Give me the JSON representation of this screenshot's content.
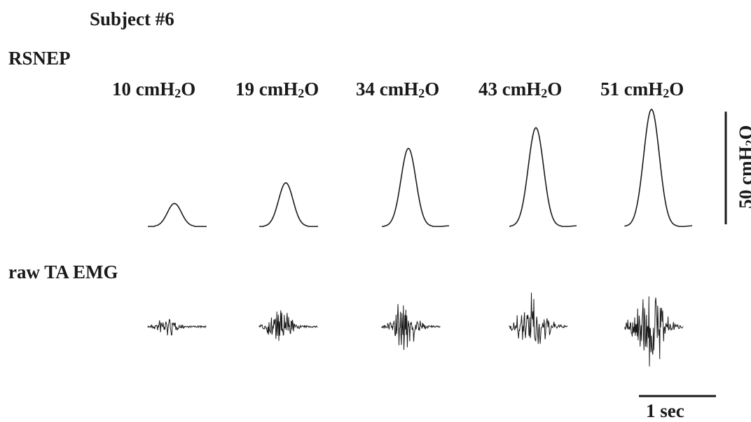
{
  "figure": {
    "subject_title": "Subject #6",
    "top_panel_label": "RSNEP",
    "bottom_panel_label": "raw TA EMG",
    "trials": [
      {
        "pressure_prefix": "10 cmH",
        "pressure_sub": "2",
        "pressure_suffix": "O",
        "peak_cmH2O": 10,
        "emg_level": 0.25
      },
      {
        "pressure_prefix": "19 cmH",
        "pressure_sub": "2",
        "pressure_suffix": "O",
        "peak_cmH2O": 19,
        "emg_level": 0.45
      },
      {
        "pressure_prefix": "34 cmH",
        "pressure_sub": "2",
        "pressure_suffix": "O",
        "peak_cmH2O": 34,
        "emg_level": 0.6
      },
      {
        "pressure_prefix": "43 cmH",
        "pressure_sub": "2",
        "pressure_suffix": "O",
        "peak_cmH2O": 43,
        "emg_level": 0.8
      },
      {
        "pressure_prefix": "51 cmH",
        "pressure_sub": "2",
        "pressure_suffix": "O",
        "peak_cmH2O": 51,
        "emg_level": 1.0
      }
    ],
    "scale_bar_pressure": {
      "prefix": "50 cmH",
      "sub": "2",
      "suffix": "O",
      "value_cmH2O": 50
    },
    "scale_bar_time": {
      "label": "1 sec",
      "value_s": 1
    }
  },
  "colors": {
    "trace": "#1a1a1a",
    "background": "#ffffff"
  }
}
